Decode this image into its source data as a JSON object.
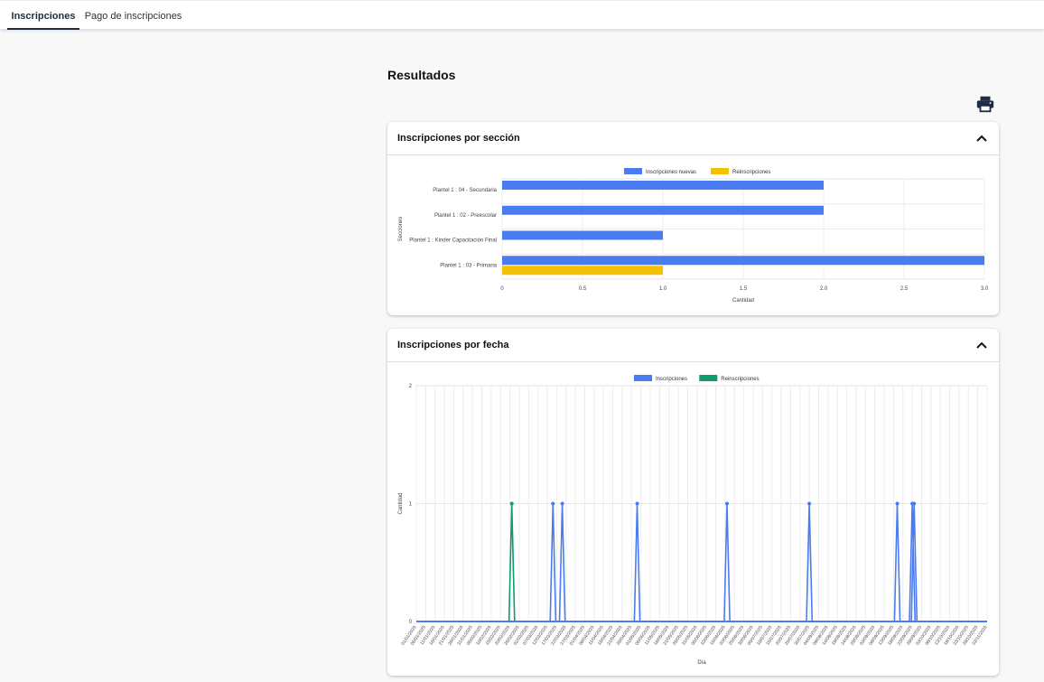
{
  "tabs": [
    {
      "label": "Inscripciones",
      "active": true
    },
    {
      "label": "Pago de inscripciones",
      "active": false
    }
  ],
  "results_title": "Resultados",
  "print_icon": "printer-icon",
  "collapse_icon": "chevron-up-icon",
  "colors": {
    "blue": "#4a7cf0",
    "yellow": "#f5c000",
    "green": "#0f9d67"
  },
  "cards": [
    {
      "title": "Inscripciones por sección"
    },
    {
      "title": "Inscripciones por fecha"
    }
  ],
  "chart_data": [
    {
      "type": "bar",
      "orientation": "horizontal",
      "legend": [
        "Inscripciones nuevas",
        "Reinscripciones"
      ],
      "legend_position": "top",
      "categories": [
        "Plantel 1 : 04 - Secundaria",
        "Plantel 1 : 02 - Preescolar",
        "Plantel 1 : Kinder Capacitación Final",
        "Plantel 1 : 03 - Primaria"
      ],
      "series": [
        {
          "name": "Inscripciones nuevas",
          "values": [
            2,
            2,
            1,
            3
          ]
        },
        {
          "name": "Reinscripciones",
          "values": [
            0,
            0,
            0,
            1
          ]
        }
      ],
      "xlabel": "Cantidad",
      "ylabel": "Secciones",
      "xlim": [
        0,
        3
      ],
      "xticks": [
        "0",
        "0.5",
        "1.0",
        "1.5",
        "2.0",
        "2.5",
        "3.0"
      ],
      "grid": true
    },
    {
      "type": "line",
      "legend": [
        "Inscripciones",
        "Reinscripciones"
      ],
      "legend_position": "top",
      "x": [
        "01/01/2025",
        "06/01/2025",
        "11/01/2025",
        "16/01/2025",
        "21/01/2025",
        "26/01/2025",
        "31/01/2025",
        "05/02/2025",
        "10/02/2025",
        "15/02/2025",
        "20/02/2025",
        "25/02/2025",
        "02/03/2025",
        "07/03/2025",
        "12/03/2025",
        "17/03/2025",
        "22/03/2025",
        "27/03/2025",
        "01/04/2025",
        "06/04/2025",
        "11/04/2025",
        "16/04/2025",
        "21/04/2025",
        "26/04/2025",
        "01/05/2025",
        "06/05/2025",
        "11/05/2025",
        "16/05/2025",
        "21/05/2025",
        "26/05/2025",
        "31/05/2025",
        "05/06/2025",
        "10/06/2025",
        "15/06/2025",
        "20/06/2025",
        "25/06/2025",
        "30/06/2025",
        "05/07/2025",
        "10/07/2025",
        "15/07/2025",
        "20/07/2025",
        "25/07/2025",
        "30/07/2025",
        "04/08/2025",
        "09/08/2025",
        "14/08/2025",
        "19/08/2025",
        "24/08/2025",
        "29/08/2025",
        "03/09/2025",
        "08/09/2025",
        "13/09/2025",
        "18/09/2025",
        "23/09/2025",
        "28/09/2025",
        "03/10/2025",
        "08/10/2025",
        "13/10/2025",
        "18/10/2025",
        "23/10/2025",
        "28/10/2025",
        "02/11/2025"
      ],
      "series": [
        {
          "name": "Inscripciones",
          "points": [
            [
              14.6,
              1
            ],
            [
              15.6,
              1
            ],
            [
              23.6,
              1
            ],
            [
              33.2,
              1
            ],
            [
              42.0,
              1
            ],
            [
              51.4,
              1
            ],
            [
              53.0,
              1
            ],
            [
              53.2,
              1
            ]
          ]
        },
        {
          "name": "Reinscripciones",
          "points": [
            [
              10.2,
              1
            ]
          ]
        }
      ],
      "xlabel": "Día",
      "ylabel": "Cantidad",
      "ylim": [
        0,
        2
      ],
      "yticks": [
        "0",
        "1",
        "2"
      ],
      "grid": true
    }
  ]
}
